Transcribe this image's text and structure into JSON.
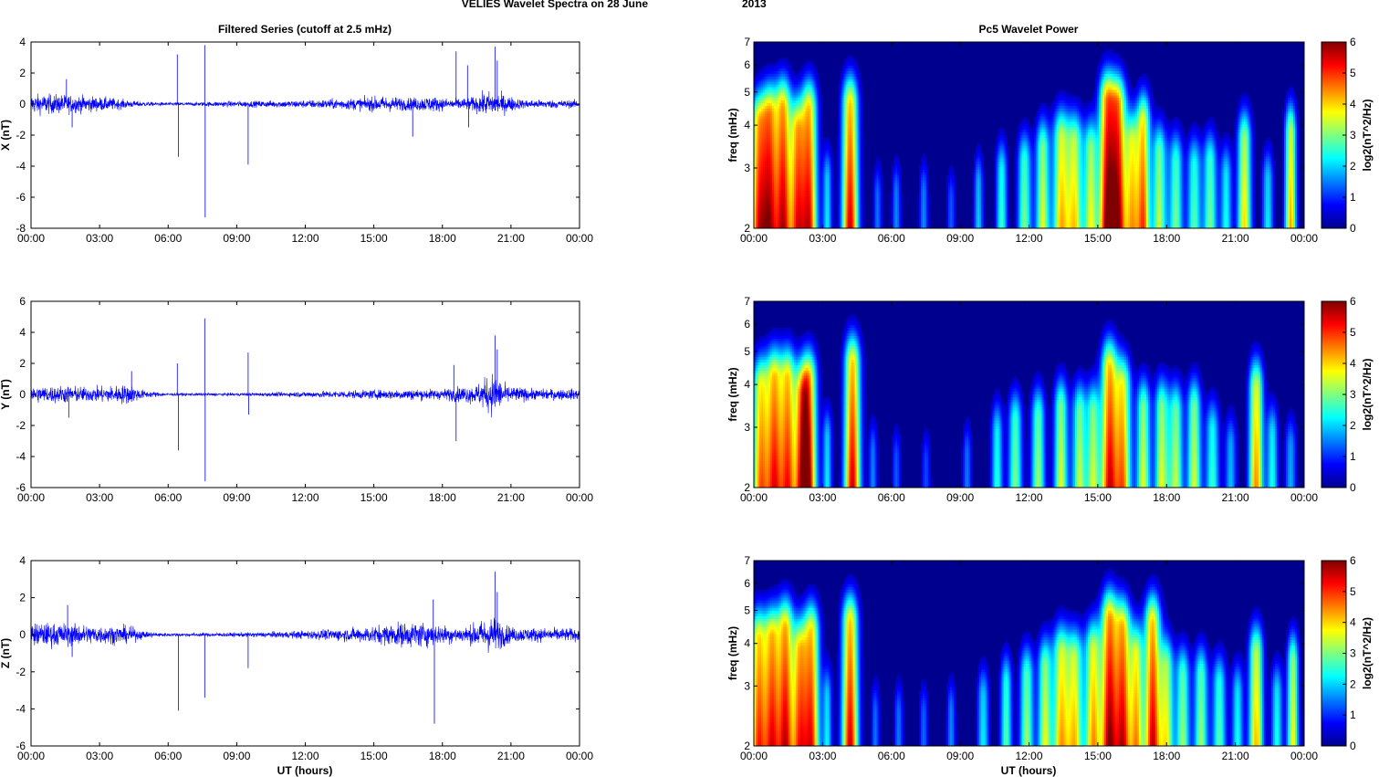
{
  "figure": {
    "title_left": "VELIES Wavelet Spectra on 28 June",
    "title_right": "2013",
    "left_column_title": "Filtered Series (cutoff at 2.5 mHz)",
    "right_column_title": "Pc5 Wavelet Power",
    "x_axis_title": "UT (hours)"
  },
  "colors": {
    "series_line": "#0000ff",
    "axis": "#000000",
    "spectrum_background": "#00008f",
    "colormap": "jet"
  },
  "chart_data": [
    {
      "type": "line",
      "id": "series-x",
      "ylabel": "X (nT)",
      "ylim": [
        -8,
        4
      ],
      "yticks": [
        -8,
        -6,
        -4,
        -2,
        0,
        2,
        4
      ],
      "xlim": [
        0,
        24
      ],
      "xticks": [
        "00:00",
        "03:00",
        "06:00",
        "09:00",
        "12:00",
        "15:00",
        "18:00",
        "21:00",
        "00:00"
      ],
      "activity": [
        [
          0,
          0.55
        ],
        [
          1.2,
          0.55
        ],
        [
          2.5,
          0.45
        ],
        [
          3.5,
          0.35
        ],
        [
          4.5,
          0.18
        ],
        [
          5.5,
          0.1
        ],
        [
          7,
          0.1
        ],
        [
          8.5,
          0.16
        ],
        [
          10,
          0.18
        ],
        [
          12,
          0.22
        ],
        [
          14,
          0.32
        ],
        [
          15.5,
          0.45
        ],
        [
          16.5,
          0.35
        ],
        [
          17.5,
          0.45
        ],
        [
          18.3,
          0.3
        ],
        [
          19.2,
          0.35
        ],
        [
          20,
          0.7
        ],
        [
          20.5,
          0.6
        ],
        [
          21.5,
          0.25
        ],
        [
          24,
          0.22
        ]
      ],
      "spikes": [
        [
          1.55,
          1.6
        ],
        [
          1.8,
          -1.5
        ],
        [
          6.4,
          3.2
        ],
        [
          6.45,
          -3.4
        ],
        [
          7.6,
          3.8
        ],
        [
          7.62,
          -7.3
        ],
        [
          9.5,
          -3.9
        ],
        [
          16.7,
          -2.1
        ],
        [
          18.6,
          3.4
        ],
        [
          19.1,
          2.5
        ],
        [
          19.15,
          -1.5
        ],
        [
          20.3,
          3.7
        ],
        [
          20.4,
          2.8
        ]
      ]
    },
    {
      "type": "line",
      "id": "series-y",
      "ylabel": "Y (nT)",
      "ylim": [
        -6,
        6
      ],
      "yticks": [
        -6,
        -4,
        -2,
        0,
        2,
        4,
        6
      ],
      "xlim": [
        0,
        24
      ],
      "xticks": [
        "00:00",
        "03:00",
        "06:00",
        "09:00",
        "12:00",
        "15:00",
        "18:00",
        "21:00",
        "00:00"
      ],
      "activity": [
        [
          0,
          0.45
        ],
        [
          1.5,
          0.5
        ],
        [
          2.5,
          0.4
        ],
        [
          4.3,
          0.55
        ],
        [
          5,
          0.2
        ],
        [
          6,
          0.08
        ],
        [
          9,
          0.08
        ],
        [
          11,
          0.12
        ],
        [
          13,
          0.2
        ],
        [
          15,
          0.25
        ],
        [
          16.5,
          0.3
        ],
        [
          18,
          0.3
        ],
        [
          19.5,
          0.55
        ],
        [
          20.2,
          1.2
        ],
        [
          20.8,
          0.5
        ],
        [
          22,
          0.3
        ],
        [
          24,
          0.3
        ]
      ],
      "spikes": [
        [
          1.65,
          -1.5
        ],
        [
          4.4,
          1.5
        ],
        [
          6.4,
          2.0
        ],
        [
          6.45,
          -3.6
        ],
        [
          7.6,
          4.9
        ],
        [
          7.62,
          -5.6
        ],
        [
          9.5,
          2.7
        ],
        [
          9.52,
          -1.3
        ],
        [
          18.5,
          1.9
        ],
        [
          18.6,
          -3.0
        ],
        [
          20.3,
          3.8
        ],
        [
          20.4,
          2.9
        ]
      ]
    },
    {
      "type": "line",
      "id": "series-z",
      "ylabel": "Z (nT)",
      "ylim": [
        -6,
        4
      ],
      "yticks": [
        -6,
        -4,
        -2,
        0,
        2,
        4
      ],
      "xlim": [
        0,
        24
      ],
      "xticks": [
        "00:00",
        "03:00",
        "06:00",
        "09:00",
        "12:00",
        "15:00",
        "18:00",
        "21:00",
        "00:00"
      ],
      "activity": [
        [
          0,
          0.55
        ],
        [
          1.5,
          0.55
        ],
        [
          2.5,
          0.45
        ],
        [
          4.3,
          0.4
        ],
        [
          5,
          0.15
        ],
        [
          6,
          0.08
        ],
        [
          9,
          0.1
        ],
        [
          11,
          0.15
        ],
        [
          13,
          0.25
        ],
        [
          14.5,
          0.35
        ],
        [
          16,
          0.55
        ],
        [
          17,
          0.6
        ],
        [
          18,
          0.45
        ],
        [
          19,
          0.35
        ],
        [
          20.2,
          0.9
        ],
        [
          21,
          0.35
        ],
        [
          24,
          0.3
        ]
      ],
      "spikes": [
        [
          1.6,
          1.6
        ],
        [
          1.8,
          -1.2
        ],
        [
          6.45,
          -4.1
        ],
        [
          7.6,
          -3.4
        ],
        [
          9.5,
          -1.8
        ],
        [
          17.6,
          1.9
        ],
        [
          17.65,
          -4.8
        ],
        [
          20.3,
          3.4
        ],
        [
          20.4,
          2.3
        ]
      ]
    },
    {
      "type": "heatmap",
      "id": "wavelet-x",
      "ylabel": "freq (mHz)",
      "yscale": "log",
      "ylim": [
        2,
        7
      ],
      "yticks": [
        2,
        3,
        4,
        5,
        6,
        7
      ],
      "xlim": [
        0,
        24
      ],
      "xticks": [
        "00:00",
        "03:00",
        "06:00",
        "09:00",
        "12:00",
        "15:00",
        "18:00",
        "21:00",
        "00:00"
      ],
      "colorbar_label": "log2(nT^2/Hz)",
      "colorbar_ticks": [
        0,
        1,
        2,
        3,
        4,
        5,
        6
      ],
      "crange": [
        0,
        6
      ],
      "blobs": [
        [
          0.2,
          4.8,
          0.35
        ],
        [
          0.7,
          5.2,
          0.35
        ],
        [
          1.3,
          5.5,
          0.35
        ],
        [
          1.9,
          4.5,
          0.3
        ],
        [
          2.4,
          5.4,
          0.35
        ],
        [
          3.2,
          2.2,
          0.2
        ],
        [
          4.2,
          5.6,
          0.35
        ],
        [
          5.4,
          1.5,
          0.18
        ],
        [
          6.2,
          1.6,
          0.2
        ],
        [
          7.4,
          1.6,
          0.2
        ],
        [
          8.6,
          1.3,
          0.2
        ],
        [
          9.8,
          2.0,
          0.2
        ],
        [
          10.8,
          2.6,
          0.25
        ],
        [
          11.8,
          3.0,
          0.3
        ],
        [
          12.6,
          3.6,
          0.3
        ],
        [
          13.4,
          4.1,
          0.35
        ],
        [
          14.0,
          3.9,
          0.35
        ],
        [
          14.7,
          3.6,
          0.3
        ],
        [
          15.4,
          5.8,
          0.35
        ],
        [
          15.9,
          5.6,
          0.35
        ],
        [
          16.5,
          3.9,
          0.3
        ],
        [
          17.0,
          4.8,
          0.3
        ],
        [
          17.7,
          3.4,
          0.3
        ],
        [
          18.4,
          3.0,
          0.3
        ],
        [
          19.2,
          2.8,
          0.3
        ],
        [
          19.9,
          3.0,
          0.3
        ],
        [
          20.6,
          2.4,
          0.25
        ],
        [
          21.4,
          4.0,
          0.3
        ],
        [
          22.4,
          2.2,
          0.25
        ],
        [
          23.4,
          4.3,
          0.25
        ]
      ]
    },
    {
      "type": "heatmap",
      "id": "wavelet-y",
      "ylabel": "freq (mHz)",
      "yscale": "log",
      "ylim": [
        2,
        7
      ],
      "yticks": [
        2,
        3,
        4,
        5,
        6,
        7
      ],
      "xlim": [
        0,
        24
      ],
      "xticks": [
        "00:00",
        "03:00",
        "06:00",
        "09:00",
        "12:00",
        "15:00",
        "18:00",
        "21:00",
        "00:00"
      ],
      "colorbar_label": "log2(nT^2/Hz)",
      "colorbar_ticks": [
        0,
        1,
        2,
        3,
        4,
        5,
        6
      ],
      "crange": [
        0,
        6
      ],
      "blobs": [
        [
          0.3,
          4.6,
          0.35
        ],
        [
          0.9,
          5.0,
          0.35
        ],
        [
          1.5,
          5.0,
          0.35
        ],
        [
          2.1,
          4.2,
          0.3
        ],
        [
          2.4,
          4.9,
          0.35
        ],
        [
          3.2,
          2.2,
          0.2
        ],
        [
          4.3,
          5.6,
          0.35
        ],
        [
          5.2,
          1.6,
          0.18
        ],
        [
          6.2,
          1.3,
          0.2
        ],
        [
          7.5,
          1.2,
          0.2
        ],
        [
          9.3,
          1.5,
          0.2
        ],
        [
          10.6,
          2.5,
          0.25
        ],
        [
          11.4,
          3.0,
          0.3
        ],
        [
          12.4,
          3.2,
          0.3
        ],
        [
          13.4,
          3.6,
          0.3
        ],
        [
          14.2,
          3.4,
          0.3
        ],
        [
          14.8,
          3.4,
          0.3
        ],
        [
          15.5,
          5.4,
          0.35
        ],
        [
          16.1,
          4.6,
          0.35
        ],
        [
          17.0,
          3.6,
          0.3
        ],
        [
          17.8,
          3.6,
          0.3
        ],
        [
          18.4,
          3.4,
          0.3
        ],
        [
          19.2,
          3.6,
          0.3
        ],
        [
          20.0,
          2.6,
          0.3
        ],
        [
          20.8,
          1.9,
          0.25
        ],
        [
          21.9,
          4.5,
          0.3
        ],
        [
          22.6,
          2.4,
          0.25
        ],
        [
          23.4,
          1.8,
          0.25
        ]
      ]
    },
    {
      "type": "heatmap",
      "id": "wavelet-z",
      "ylabel": "freq (mHz)",
      "yscale": "log",
      "ylim": [
        2,
        7
      ],
      "yticks": [
        2,
        3,
        4,
        5,
        6,
        7
      ],
      "xlim": [
        0,
        24
      ],
      "xticks": [
        "00:00",
        "03:00",
        "06:00",
        "09:00",
        "12:00",
        "15:00",
        "18:00",
        "21:00",
        "00:00"
      ],
      "colorbar_label": "log2(nT^2/Hz)",
      "colorbar_ticks": [
        0,
        1,
        2,
        3,
        4,
        5,
        6
      ],
      "crange": [
        0,
        6
      ],
      "blobs": [
        [
          0.2,
          4.9,
          0.35
        ],
        [
          0.8,
          5.0,
          0.35
        ],
        [
          1.4,
          5.4,
          0.35
        ],
        [
          2.0,
          4.4,
          0.3
        ],
        [
          2.5,
          5.2,
          0.35
        ],
        [
          3.2,
          2.2,
          0.2
        ],
        [
          4.2,
          5.6,
          0.35
        ],
        [
          5.3,
          1.5,
          0.18
        ],
        [
          6.3,
          1.5,
          0.2
        ],
        [
          7.4,
          1.4,
          0.2
        ],
        [
          8.6,
          1.6,
          0.2
        ],
        [
          10.0,
          2.2,
          0.25
        ],
        [
          11.0,
          2.8,
          0.25
        ],
        [
          11.9,
          3.2,
          0.3
        ],
        [
          12.7,
          3.6,
          0.3
        ],
        [
          13.4,
          4.2,
          0.35
        ],
        [
          14.0,
          4.0,
          0.35
        ],
        [
          14.8,
          4.4,
          0.35
        ],
        [
          15.5,
          5.8,
          0.35
        ],
        [
          16.1,
          5.4,
          0.35
        ],
        [
          16.7,
          4.2,
          0.3
        ],
        [
          17.4,
          5.6,
          0.35
        ],
        [
          18.0,
          3.6,
          0.3
        ],
        [
          18.7,
          3.2,
          0.3
        ],
        [
          19.5,
          3.2,
          0.3
        ],
        [
          20.3,
          2.8,
          0.3
        ],
        [
          21.1,
          2.4,
          0.25
        ],
        [
          21.9,
          4.2,
          0.3
        ],
        [
          22.8,
          2.4,
          0.25
        ],
        [
          23.5,
          3.8,
          0.25
        ]
      ]
    }
  ]
}
